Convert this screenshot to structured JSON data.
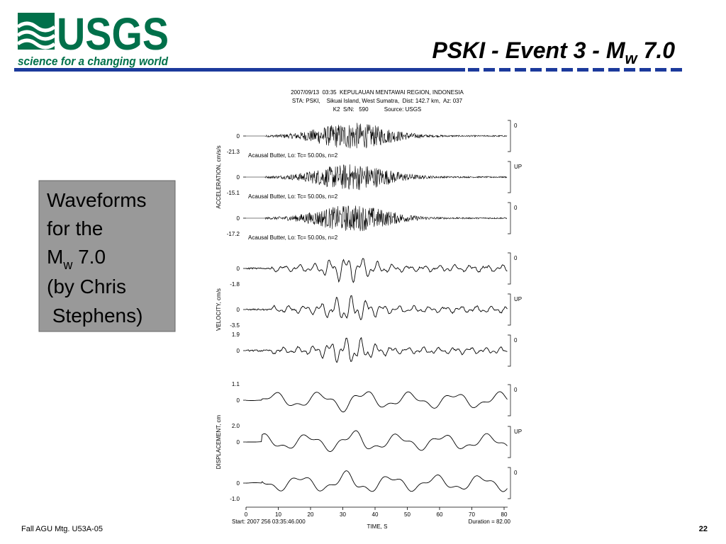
{
  "header": {
    "logo": "USGS",
    "tagline": "science for a changing world",
    "title": {
      "main": "PSKI - Event 3 - M",
      "sub": "w",
      "rest": " 7.0"
    }
  },
  "sidebar": {
    "line1": "Waveforms",
    "line2": "for the",
    "line3": {
      "main": "M",
      "sub": "w",
      "rest": " 7.0"
    },
    "line4": "(by Chris",
    "line5": " Stephens)"
  },
  "figure": {
    "heading": [
      "2007/09/13  03:35  KEPULAUAN MENTAWAI REGION, INDONESIA",
      "STA: PSKI,    Sikuai Island, West Sumatra,  Dist: 142.7 km,  Az: 037",
      "K2  S/N:   590          Source: USGS"
    ],
    "axis_labels": [
      "ACCELERATION, cm/s/s",
      "VELOCITY, cm/s",
      "DISPLACEMENT, cm"
    ],
    "filter_label": "Acausal Butter, Lo: Tc= 50.00s, n=2",
    "traces": [
      {
        "zero": "0",
        "min": "-21.3",
        "component": "0"
      },
      {
        "zero": "0",
        "min": "-15.1",
        "component": "UP"
      },
      {
        "zero": "0",
        "min": "-17.2",
        "component": "0"
      },
      {
        "zero": "0",
        "min": "-1.8",
        "component": "0"
      },
      {
        "zero": "0",
        "min": "-3.5",
        "component": "UP"
      },
      {
        "max": "1.9",
        "zero": "0",
        "component": "0"
      },
      {
        "max": "1.1",
        "zero": "0",
        "component": "0"
      },
      {
        "max": "2.0",
        "zero": "0",
        "component": "UP"
      },
      {
        "zero": "0",
        "min": "-1.0",
        "component": "0"
      }
    ],
    "xticks": [
      0,
      10,
      20,
      30,
      40,
      50,
      60,
      70,
      80
    ],
    "xlabel": "TIME, S",
    "start": "Start: 2007 256 03:35:46.000",
    "duration": "Duration = 82.00"
  },
  "footer": {
    "left": "Fall AGU Mtg. U53A-05",
    "page": "22"
  }
}
